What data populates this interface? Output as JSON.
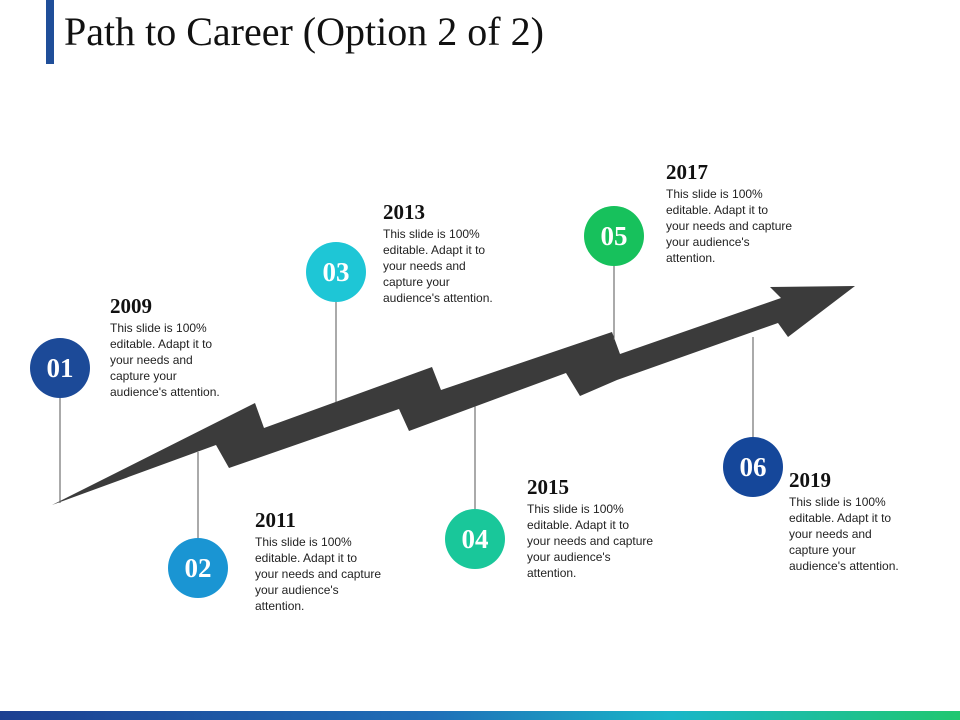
{
  "title": "Path to Career (Option 2 of 2)",
  "colors": {
    "accent": "#1f4e99",
    "arrow": "#3b3b3b",
    "connector": "#555555"
  },
  "milestones": [
    {
      "number": "01",
      "year": "2009",
      "desc_lines": [
        "This slide is 100%",
        "editable. Adapt it to",
        "your needs and",
        "capture your",
        "audience's attention."
      ],
      "color": "#1c4a98"
    },
    {
      "number": "02",
      "year": "2011",
      "desc_lines": [
        "This slide is 100%",
        "editable. Adapt it to",
        "your needs and capture",
        "your audience's",
        "attention."
      ],
      "color": "#1a95d3"
    },
    {
      "number": "03",
      "year": "2013",
      "desc_lines": [
        "This slide is 100%",
        "editable. Adapt it to",
        "your needs and",
        "capture your",
        "audience's attention."
      ],
      "color": "#1ec6d6"
    },
    {
      "number": "04",
      "year": "2015",
      "desc_lines": [
        "This slide is 100%",
        "editable. Adapt it to",
        "your needs and capture",
        "your audience's",
        "attention."
      ],
      "color": "#19c79a"
    },
    {
      "number": "05",
      "year": "2017",
      "desc_lines": [
        "This slide is 100%",
        "editable. Adapt it to",
        "your needs and capture",
        "your audience's",
        "attention."
      ],
      "color": "#17c15c"
    },
    {
      "number": "06",
      "year": "2019",
      "desc_lines": [
        "This slide is 100%",
        "editable. Adapt it to",
        "your needs and",
        "capture your",
        "audience's attention."
      ],
      "color": "#15479a"
    }
  ]
}
